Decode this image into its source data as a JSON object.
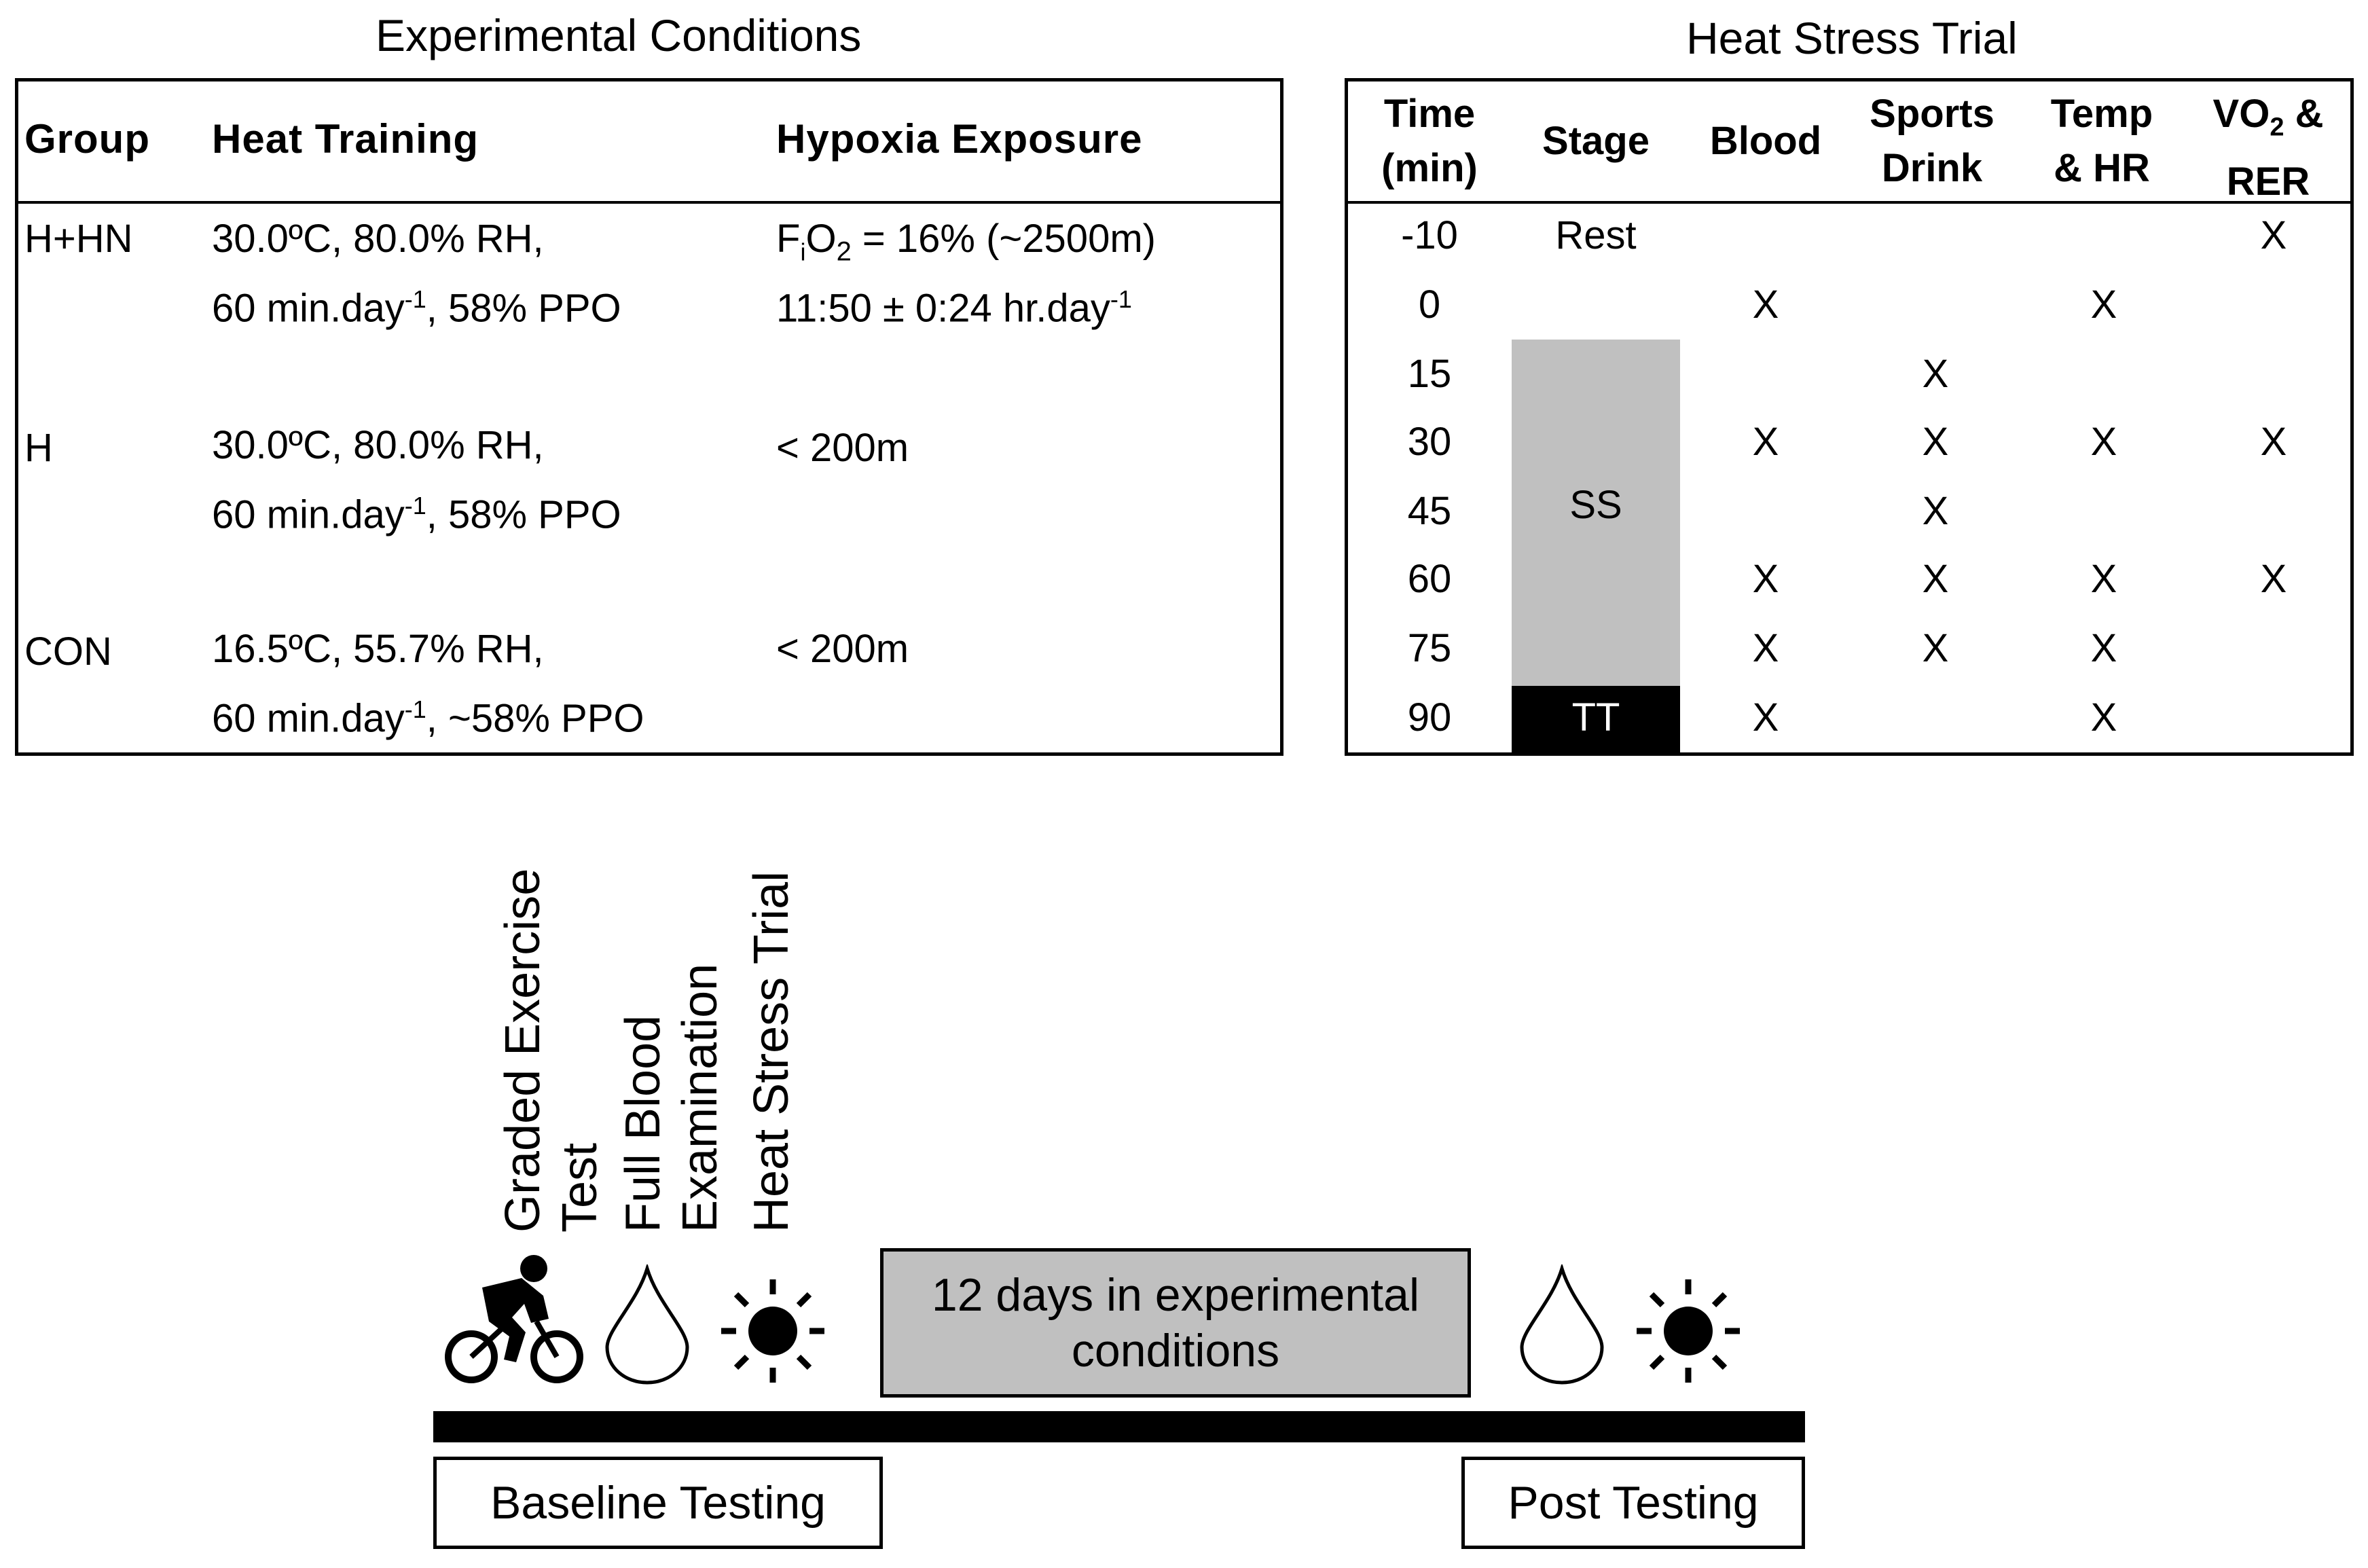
{
  "experimental_conditions": {
    "title": "Experimental Conditions",
    "headers": {
      "group": "Group",
      "heat": "Heat Training",
      "hypoxia": "Hypoxia Exposure"
    },
    "rows": [
      {
        "group": "H+HN",
        "heat_line1": "30.0ºC, 80.0% RH,",
        "heat_line2_a": "60 min.day",
        "heat_line2_sup": "-1",
        "heat_line2_b": ", 58% PPO",
        "hyp_line1_f": "F",
        "hyp_line1_sub1": "i",
        "hyp_line1_o": "O",
        "hyp_line1_sub2": "2",
        "hyp_line1_rest": " = 16% (~2500m)",
        "hyp_line2_a": "11:50 ± 0:24 hr.day",
        "hyp_line2_sup": "-1"
      },
      {
        "group": "H",
        "heat_line1": "30.0ºC, 80.0% RH,",
        "heat_line2_a": "60 min.day",
        "heat_line2_sup": "-1",
        "heat_line2_b": ", 58% PPO",
        "hyp_line1": "< 200m"
      },
      {
        "group": "CON",
        "heat_line1": "16.5ºC,  55.7% RH,",
        "heat_line2_a": "60 min.day",
        "heat_line2_sup": "-1",
        "heat_line2_b": ", ~58% PPO",
        "hyp_line1": "< 200m"
      }
    ]
  },
  "heat_stress_trial": {
    "title": "Heat Stress Trial",
    "headers": {
      "time_1": "Time",
      "time_2": "(min)",
      "stage": "Stage",
      "blood": "Blood",
      "drink_1": "Sports",
      "drink_2": "Drink",
      "temp_1": "Temp",
      "temp_2": "& HR",
      "vo2_a": "VO",
      "vo2_sub": "2",
      "vo2_b": " &",
      "vo2_2": "RER"
    },
    "times": [
      "-10",
      "0",
      "15",
      "30",
      "45",
      "60",
      "75",
      "90"
    ],
    "stage_rest": "Rest",
    "stage_ss": "SS",
    "stage_tt": "TT",
    "mark": "X",
    "marks": {
      "blood": [
        false,
        true,
        false,
        true,
        false,
        true,
        true,
        true
      ],
      "drink": [
        false,
        false,
        true,
        true,
        true,
        true,
        true,
        false
      ],
      "temp": [
        false,
        true,
        false,
        true,
        false,
        true,
        true,
        true
      ],
      "vo2": [
        true,
        false,
        false,
        true,
        false,
        true,
        false,
        false
      ]
    },
    "colors": {
      "ss_fill": "#c0c0c0",
      "tt_fill": "#000000",
      "tt_text": "#ffffff"
    }
  },
  "timeline": {
    "labels": {
      "graded_1": "Graded Exercise",
      "graded_2": "Test",
      "blood_1": "Full Blood",
      "blood_2": "Examination",
      "hst": "Heat Stress Trial"
    },
    "middle_box": {
      "line1": "12 days in experimental",
      "line2": "conditions"
    },
    "baseline": "Baseline Testing",
    "post": "Post Testing",
    "icons": [
      "cyclist-icon",
      "water-drop-icon",
      "sun-icon",
      "water-drop-icon",
      "sun-icon"
    ],
    "colors": {
      "middle_fill": "#c0c0c0",
      "bar": "#000000"
    }
  }
}
